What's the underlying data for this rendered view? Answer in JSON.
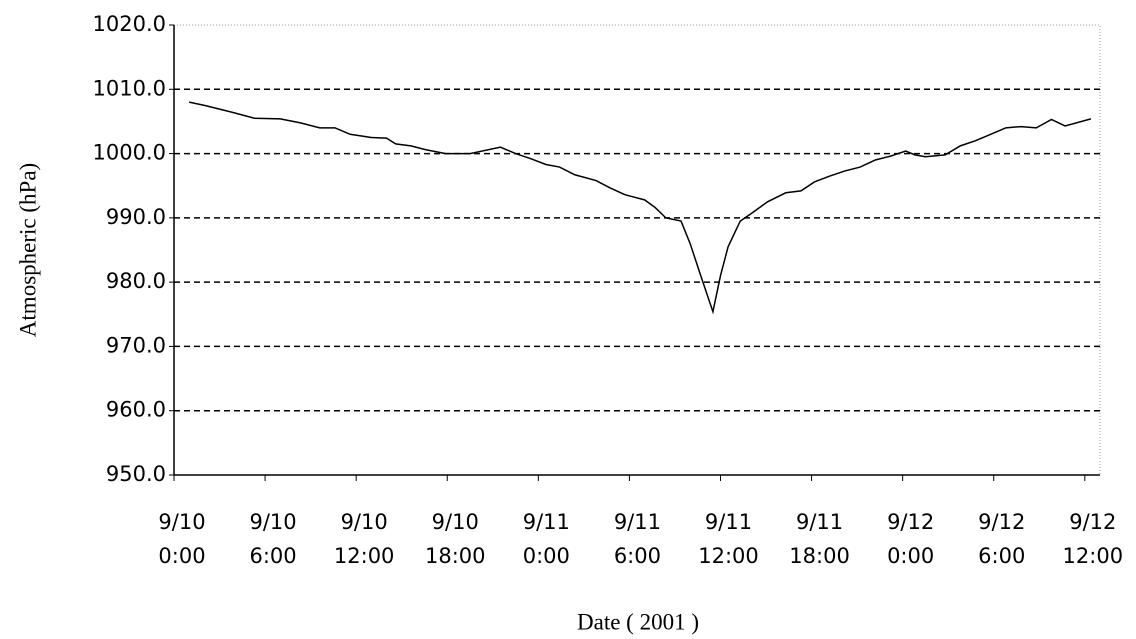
{
  "chart_data": {
    "type": "line",
    "y_label": "Atmospheric (hPa)",
    "x_label": "Date ( 2001 )",
    "x": [
      1,
      2,
      3.7,
      5.3,
      7,
      8.3,
      9.6,
      10.6,
      11.6,
      13,
      14,
      14.6,
      15.6,
      16.6,
      17.9,
      19.5,
      21.5,
      22.5,
      23.5,
      24.5,
      25.4,
      26.4,
      27.8,
      28.7,
      29.7,
      31,
      31.7,
      32.4,
      33.4,
      34,
      34.7,
      35.5,
      36,
      36.5,
      37.3,
      38.1,
      39.1,
      40.3,
      41.3,
      42.2,
      43.2,
      44.2,
      45.2,
      46.2,
      47.2,
      48.2,
      48.8,
      49.5,
      50.8,
      51.8,
      52.8,
      53.8,
      54.8,
      55.8,
      56.8,
      57.8,
      58.7,
      60.4
    ],
    "series": [
      {
        "color": "#000000",
        "values": [
          1008.0,
          1007.5,
          1006.5,
          1005.5,
          1005.4,
          1004.8,
          1004.0,
          1004.0,
          1003.0,
          1002.5,
          1002.4,
          1001.5,
          1001.2,
          1000.6,
          1000.0,
          1000.0,
          1001.0,
          1000.0,
          999.2,
          998.3,
          997.9,
          996.7,
          995.8,
          994.7,
          993.6,
          992.8,
          991.6,
          990.0,
          989.5,
          986.0,
          981.0,
          975.4,
          981.0,
          985.5,
          989.5,
          990.8,
          992.5,
          993.9,
          994.2,
          995.6,
          996.5,
          997.3,
          997.9,
          999.0,
          999.6,
          1000.4,
          999.8,
          999.5,
          999.8,
          1001.2,
          1002.0,
          1003.0,
          1004.0,
          1004.2,
          1004.0,
          1005.3,
          1004.3,
          1005.4
        ]
      }
    ],
    "xlim": [
      0,
      61
    ],
    "xticks": [
      {
        "value": 0,
        "label": "9/10 0:00"
      },
      {
        "value": 6,
        "label": "9/10 6:00"
      },
      {
        "value": 12,
        "label": "9/10 12:00"
      },
      {
        "value": 18,
        "label": "9/10 18:00"
      },
      {
        "value": 24,
        "label": "9/11 0:00"
      },
      {
        "value": 30,
        "label": "9/11 6:00"
      },
      {
        "value": 36,
        "label": "9/11 12:00"
      },
      {
        "value": 42,
        "label": "9/11 18:00"
      },
      {
        "value": 48,
        "label": "9/12 0:00"
      },
      {
        "value": 54,
        "label": "9/12 6:00"
      },
      {
        "value": 60,
        "label": "9/12 12:00"
      }
    ],
    "ylim": [
      950,
      1020
    ],
    "yticks": [
      {
        "value": 950,
        "label": "950.0"
      },
      {
        "value": 960,
        "label": "960.0"
      },
      {
        "value": 970,
        "label": "970.0"
      },
      {
        "value": 980,
        "label": "980.0"
      },
      {
        "value": 990,
        "label": "990.0"
      },
      {
        "value": 1000,
        "label": "1000.0"
      },
      {
        "value": 1010,
        "label": "1010.0"
      },
      {
        "value": 1020,
        "label": "1020.0"
      }
    ],
    "grid": true
  }
}
